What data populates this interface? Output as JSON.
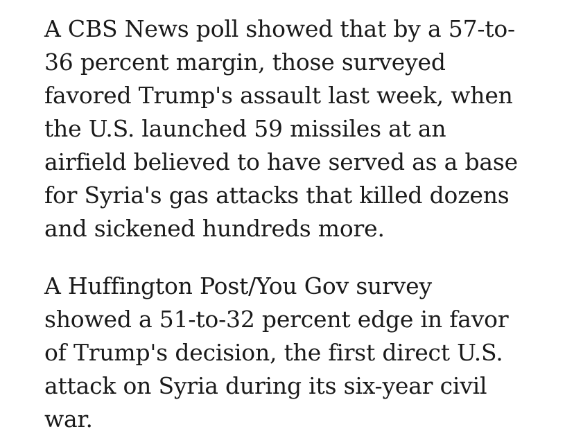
{
  "article": {
    "paragraphs": [
      {
        "lines": [
          "A CBS News poll showed that by a 57-to-",
          "36 percent margin, those surveyed",
          "favored Trump's assault last week, when",
          "the U.S. launched 59 missiles at an",
          "airfield believed to have served as a base",
          "for Syria's gas attacks that killed dozens",
          "and sickened hundreds more."
        ]
      },
      {
        "lines": [
          "A Huffington Post/You Gov survey",
          "showed a 51-to-32 percent edge in favor",
          "of Trump's decision, the first direct U.S.",
          "attack on Syria during its six-year civil",
          "war."
        ]
      }
    ]
  }
}
